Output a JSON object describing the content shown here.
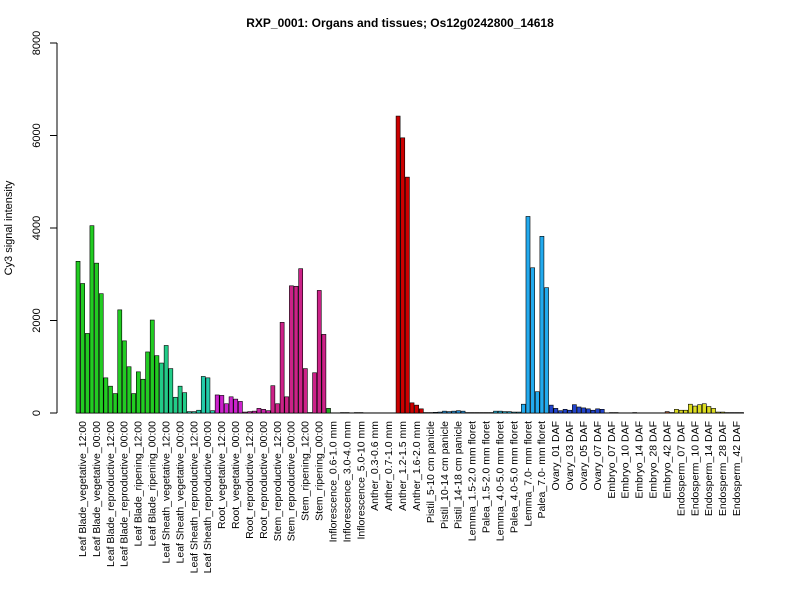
{
  "chart_data": {
    "type": "bar",
    "title": "RXP_0001: Organs and tissues; Os12g0242800_14618",
    "xlabel": "",
    "ylabel": "Cy3 signal intensity",
    "ylim": [
      0,
      8000
    ],
    "yticks": [
      0,
      2000,
      4000,
      6000,
      8000
    ],
    "grid": false,
    "legend": "none",
    "categories": [
      "Leaf Blade_vegetative_12:00",
      "Leaf Blade_vegetative_00:00",
      "Leaf Blade_reproductive_12:00",
      "Leaf Blade_reproductive_00:00",
      "Leaf Blade_ripening_12:00",
      "Leaf Blade_ripening_00:00",
      "Leaf Sheath_vegetative_12:00",
      "Leaf Sheath_vegetative_00:00",
      "Leaf Sheath_reproductive_12:00",
      "Leaf Sheath_reproductive_00:00",
      "Root_vegetative_12:00",
      "Root_vegetative_00:00",
      "Root_reproductive_12:00",
      "Root_reproductive_00:00",
      "Stem_reproductive_12:00",
      "Stem_reproductive_00:00",
      "Stem_ripening_12:00",
      "Stem_ripening_00:00",
      "Inflorescence_0.6-1.0 mm",
      "Inflorescence_3.0-4.0 mm",
      "Inflorescence_5.0-10 mm",
      "Anther_0.3-0.6 mm",
      "Anther_0.7-1.0 mm",
      "Anther_1.2-1.5 mm",
      "Anther_1.6-2.0 mm",
      "Pistil_5-10 cm panicle",
      "Pistil_10-14 cm panicle",
      "Pistil_14-18 cm panicle",
      "Lemma_1.5-2.0 mm floret",
      "Palea_1.5-2.0 mm floret",
      "Lemma_4.0-5.0 mm floret",
      "Palea_4.0-5.0 mm floret",
      "Lemma_7.0- mm floret",
      "Palea_7.0- mm floret",
      "Ovary_01 DAF",
      "Ovary_03 DAF",
      "Ovary_05 DAF",
      "Ovary_07 DAF",
      "Embryo_07 DAF",
      "Embryo_10 DAF",
      "Embryo_14 DAF",
      "Embryo_28 DAF",
      "Embryo_42 DAF",
      "Endosperm_07 DAF",
      "Endosperm_10 DAF",
      "Endosperm_14 DAF",
      "Endosperm_28 DAF",
      "Endosperm_42 DAF"
    ],
    "groups": [
      {
        "color": "#22cc22",
        "values": [
          3280,
          2800,
          1720
        ]
      },
      {
        "color": "#22cc22",
        "values": [
          4050,
          3240,
          2580
        ]
      },
      {
        "color": "#22cc22",
        "values": [
          760,
          580,
          420
        ]
      },
      {
        "color": "#22cc22",
        "values": [
          2230,
          1560,
          1000
        ]
      },
      {
        "color": "#22cc22",
        "values": [
          420,
          890,
          730
        ]
      },
      {
        "color": "#22cc22",
        "values": [
          1320,
          2010,
          1240
        ]
      },
      {
        "color": "#22cc88",
        "values": [
          1080,
          1460,
          960
        ]
      },
      {
        "color": "#22cc88",
        "values": [
          340,
          580,
          440
        ]
      },
      {
        "color": "#22ccaa",
        "values": [
          30,
          30,
          60
        ]
      },
      {
        "color": "#22ccaa",
        "values": [
          790,
          760,
          50
        ]
      },
      {
        "color": "#cc22cc",
        "values": [
          390,
          380,
          200
        ]
      },
      {
        "color": "#cc22cc",
        "values": [
          350,
          300,
          250
        ]
      },
      {
        "color": "#cc22aa",
        "values": [
          20,
          30,
          40
        ]
      },
      {
        "color": "#cc22aa",
        "values": [
          100,
          80,
          50
        ]
      },
      {
        "color": "#cc2288",
        "values": [
          590,
          200,
          1960
        ]
      },
      {
        "color": "#cc2288",
        "values": [
          350,
          2750,
          2740
        ]
      },
      {
        "color": "#cc2288",
        "values": [
          3120,
          960,
          10
        ]
      },
      {
        "color": "#cc2288",
        "values": [
          870,
          2650,
          1700
        ]
      },
      {
        "color": "#22aa22",
        "values": [
          100,
          5,
          5
        ]
      },
      {
        "color": "#22aa22",
        "values": [
          10,
          10,
          5
        ]
      },
      {
        "color": "#22aa22",
        "values": [
          10,
          10,
          5
        ]
      },
      {
        "color": "#cc2222",
        "values": [
          5,
          5,
          5
        ]
      },
      {
        "color": "#cc2222",
        "values": [
          5,
          5,
          5
        ]
      },
      {
        "color": "#cc0000",
        "values": [
          6420,
          5950,
          5100
        ]
      },
      {
        "color": "#cc0000",
        "values": [
          220,
          170,
          90
        ]
      },
      {
        "color": "#2288cc",
        "values": [
          10,
          10,
          15
        ]
      },
      {
        "color": "#2288cc",
        "values": [
          20,
          40,
          30
        ]
      },
      {
        "color": "#2288cc",
        "values": [
          40,
          50,
          40
        ]
      },
      {
        "color": "#22aacc",
        "values": [
          10,
          10,
          10
        ]
      },
      {
        "color": "#22aacc",
        "values": [
          10,
          10,
          10
        ]
      },
      {
        "color": "#22aacc",
        "values": [
          40,
          40,
          30
        ]
      },
      {
        "color": "#22aacc",
        "values": [
          30,
          20,
          20
        ]
      },
      {
        "color": "#22aaee",
        "values": [
          190,
          4250,
          3140
        ]
      },
      {
        "color": "#22aaee",
        "values": [
          460,
          3820,
          2710
        ]
      },
      {
        "color": "#2244cc",
        "values": [
          170,
          100,
          50
        ]
      },
      {
        "color": "#2244cc",
        "values": [
          80,
          60,
          180
        ]
      },
      {
        "color": "#2244cc",
        "values": [
          130,
          110,
          90
        ]
      },
      {
        "color": "#2244cc",
        "values": [
          60,
          90,
          80
        ]
      },
      {
        "color": "#888833",
        "values": [
          5,
          10,
          10
        ]
      },
      {
        "color": "#888833",
        "values": [
          5,
          5,
          5
        ]
      },
      {
        "color": "#888833",
        "values": [
          10,
          5,
          5
        ]
      },
      {
        "color": "#888833",
        "values": [
          5,
          5,
          5
        ]
      },
      {
        "color": "#aa5533",
        "values": [
          5,
          30,
          10
        ]
      },
      {
        "color": "#dddd22",
        "values": [
          80,
          60,
          60
        ]
      },
      {
        "color": "#dddd22",
        "values": [
          190,
          150,
          180
        ]
      },
      {
        "color": "#dddd22",
        "values": [
          200,
          140,
          100
        ]
      },
      {
        "color": "#dddd22",
        "values": [
          20,
          20,
          10
        ]
      },
      {
        "color": "#dddd22",
        "values": [
          10,
          10,
          10
        ]
      }
    ]
  }
}
